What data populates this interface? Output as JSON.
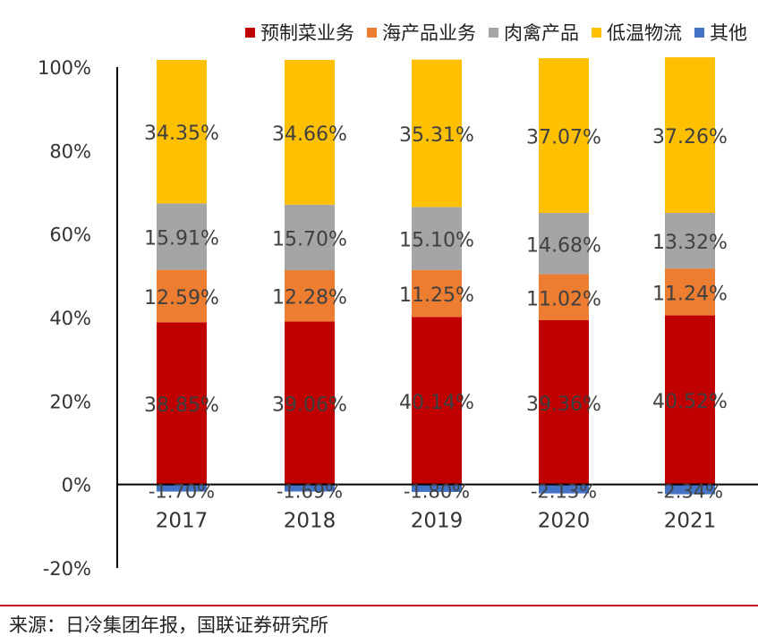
{
  "chart_data": {
    "type": "bar",
    "stacked": true,
    "categories": [
      "2017",
      "2018",
      "2019",
      "2020",
      "2021"
    ],
    "series": [
      {
        "name": "预制菜业务",
        "color": "#c00000",
        "values": [
          38.85,
          39.06,
          40.14,
          39.36,
          40.52
        ],
        "labels": [
          "38.85%",
          "39.06%",
          "40.14%",
          "39.36%",
          "40.52%"
        ]
      },
      {
        "name": "海产品业务",
        "color": "#ed7d31",
        "values": [
          12.59,
          12.28,
          11.25,
          11.02,
          11.24
        ],
        "labels": [
          "12.59%",
          "12.28%",
          "11.25%",
          "11.02%",
          "11.24%"
        ]
      },
      {
        "name": "肉禽产品",
        "color": "#a5a5a5",
        "values": [
          15.91,
          15.7,
          15.1,
          14.68,
          13.32
        ],
        "labels": [
          "15.91%",
          "15.70%",
          "15.10%",
          "14.68%",
          "13.32%"
        ]
      },
      {
        "name": "低温物流",
        "color": "#ffc000",
        "values": [
          34.35,
          34.66,
          35.31,
          37.07,
          37.26
        ],
        "labels": [
          "34.35%",
          "34.66%",
          "35.31%",
          "37.07%",
          "37.26%"
        ]
      },
      {
        "name": "其他",
        "color": "#4472c4",
        "values": [
          -1.7,
          -1.69,
          -1.8,
          -2.13,
          -2.34
        ],
        "labels": [
          "-1.70%",
          "-1.69%",
          "-1.80%",
          "-2.13%",
          "-2.34%"
        ]
      }
    ],
    "y_ticks": [
      "-20%",
      "0%",
      "20%",
      "40%",
      "60%",
      "80%",
      "100%"
    ],
    "ylim": [
      -20,
      100
    ],
    "legend_position": "top",
    "grid": false
  },
  "source": {
    "text": "来源：日冷集团年报，国联证券研究所"
  }
}
